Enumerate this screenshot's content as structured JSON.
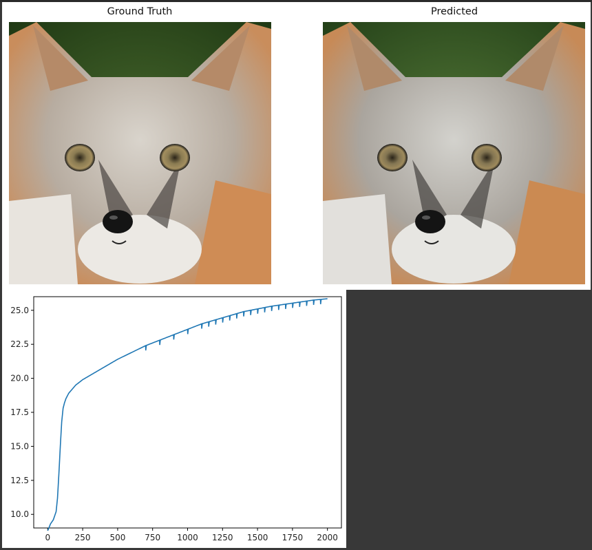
{
  "panels": {
    "left_title": "Ground Truth",
    "right_title": "Predicted"
  },
  "colors": {
    "line": "#1f77b4",
    "background": "#383838"
  },
  "chart_data": {
    "type": "line",
    "title": "",
    "xlabel": "",
    "ylabel": "",
    "xlim": [
      -100,
      2100
    ],
    "ylim": [
      9.0,
      26.0
    ],
    "x_ticks": [
      0,
      250,
      500,
      750,
      1000,
      1250,
      1500,
      1750,
      2000
    ],
    "x_tick_labels": [
      "0",
      "250",
      "500",
      "750",
      "1000",
      "1250",
      "1500",
      "1750",
      "2000"
    ],
    "y_ticks": [
      10.0,
      12.5,
      15.0,
      17.5,
      20.0,
      22.5,
      25.0
    ],
    "y_tick_labels": [
      "10.0",
      "12.5",
      "15.0",
      "17.5",
      "20.0",
      "22.5",
      "25.0"
    ],
    "grid": false,
    "series": [
      {
        "x": [
          0,
          20,
          40,
          60,
          70,
          80,
          90,
          100,
          110,
          120,
          130,
          140,
          150,
          175,
          200,
          250,
          300,
          350,
          400,
          500,
          600,
          700,
          800,
          900,
          1000,
          1100,
          1200,
          1300,
          1400,
          1500,
          1600,
          1700,
          1800,
          1900,
          2000
        ],
        "y": [
          8.8,
          9.3,
          9.6,
          10.2,
          11.2,
          13.0,
          15.0,
          16.8,
          17.8,
          18.2,
          18.5,
          18.7,
          18.9,
          19.2,
          19.5,
          19.9,
          20.2,
          20.5,
          20.8,
          21.4,
          21.9,
          22.4,
          22.8,
          23.2,
          23.6,
          24.0,
          24.3,
          24.6,
          24.9,
          25.1,
          25.3,
          25.45,
          25.6,
          25.75,
          25.85
        ]
      }
    ],
    "dips_x": [
      700,
      800,
      900,
      1000,
      1100,
      1150,
      1200,
      1250,
      1300,
      1350,
      1400,
      1450,
      1500,
      1550,
      1600,
      1650,
      1700,
      1750,
      1800,
      1850,
      1900,
      1950
    ]
  }
}
